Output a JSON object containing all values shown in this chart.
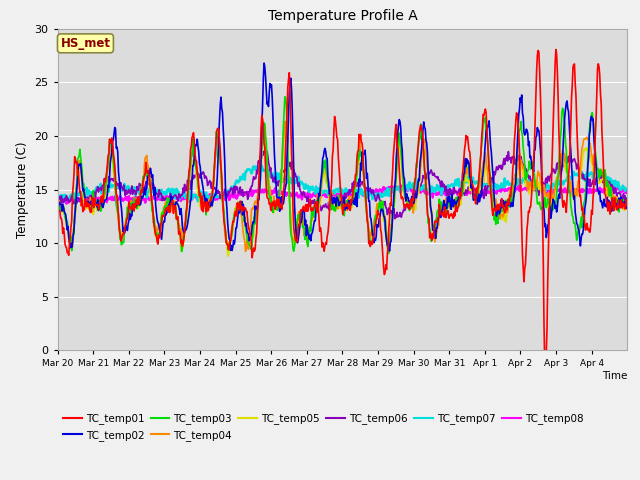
{
  "title": "Temperature Profile A",
  "xlabel": "Time",
  "ylabel": "Temperature (C)",
  "ylim": [
    0,
    30
  ],
  "plot_bg": "#dcdcdc",
  "fig_bg": "#f0f0f0",
  "series_colors": {
    "TC_temp01": "#ff0000",
    "TC_temp02": "#0000dd",
    "TC_temp03": "#00dd00",
    "TC_temp04": "#ff8800",
    "TC_temp05": "#dddd00",
    "TC_temp06": "#8800bb",
    "TC_temp07": "#00dddd",
    "TC_temp08": "#ff00ff"
  },
  "annotation_label": "HS_met",
  "annotation_bg": "#ffffaa",
  "annotation_fg": "#880000",
  "xtick_labels": [
    "Mar 20",
    "Mar 21",
    "Mar 22",
    "Mar 23",
    "Mar 24",
    "Mar 25",
    "Mar 26",
    "Mar 27",
    "Mar 28",
    "Mar 29",
    "Mar 30",
    "Mar 31",
    "Apr 1",
    "Apr 2",
    "Apr 3",
    "Apr 4"
  ],
  "ytick_labels": [
    "0",
    "5",
    "10",
    "15",
    "20",
    "25",
    "30"
  ],
  "num_days": 16
}
